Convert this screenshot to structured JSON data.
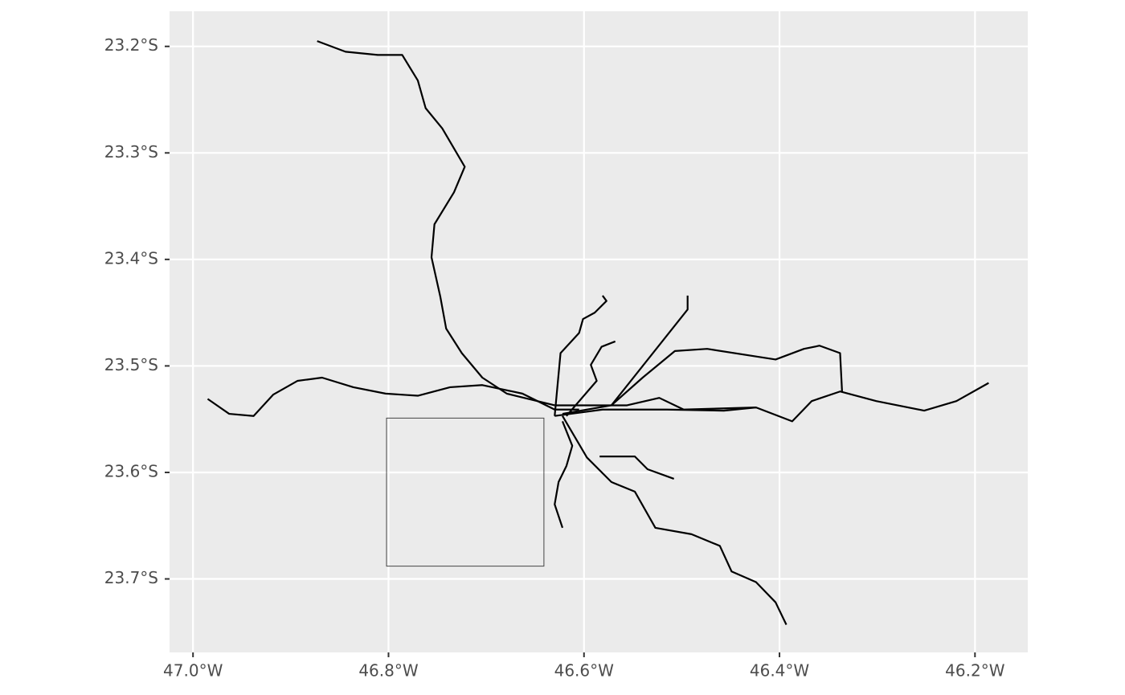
{
  "chart_data": {
    "type": "map",
    "xlim": [
      -47.024,
      -46.146
    ],
    "ylim": [
      -23.769,
      -23.167
    ],
    "xticks": [
      {
        "value": -47.0,
        "label": "47.0°W"
      },
      {
        "value": -46.8,
        "label": "46.8°W"
      },
      {
        "value": -46.6,
        "label": "46.6°W"
      },
      {
        "value": -46.4,
        "label": "46.4°W"
      },
      {
        "value": -46.2,
        "label": "46.2°W"
      }
    ],
    "yticks": [
      {
        "value": -23.2,
        "label": "23.2°S"
      },
      {
        "value": -23.3,
        "label": "23.3°S"
      },
      {
        "value": -23.4,
        "label": "23.4°S"
      },
      {
        "value": -23.5,
        "label": "23.5°S"
      },
      {
        "value": -23.6,
        "label": "23.6°S"
      },
      {
        "value": -23.7,
        "label": "23.7°S"
      }
    ],
    "grid": true,
    "color": "#000000",
    "tracks": [
      {
        "x": [
          -46.873,
          -46.844,
          -46.811,
          -46.786,
          -46.77,
          -46.762,
          -46.745,
          -46.722,
          -46.733,
          -46.753,
          -46.756,
          -46.747,
          -46.741,
          -46.725,
          -46.704,
          -46.679,
          -46.63
        ],
        "y": [
          -23.195,
          -23.205,
          -23.208,
          -23.208,
          -23.232,
          -23.258,
          -23.277,
          -23.313,
          -23.337,
          -23.367,
          -23.398,
          -23.435,
          -23.465,
          -23.488,
          -23.511,
          -23.526,
          -23.537
        ]
      },
      {
        "x": [
          -46.985,
          -46.963,
          -46.938,
          -46.918,
          -46.893,
          -46.868,
          -46.836,
          -46.803,
          -46.77,
          -46.737,
          -46.704,
          -46.663,
          -46.63,
          -46.605
        ],
        "y": [
          -23.531,
          -23.545,
          -23.547,
          -23.527,
          -23.514,
          -23.511,
          -23.52,
          -23.526,
          -23.528,
          -23.52,
          -23.518,
          -23.526,
          -23.541,
          -23.541
        ]
      },
      {
        "x": [
          -46.63,
          -46.581,
          -46.515,
          -46.457,
          -46.424,
          -46.387,
          -46.367,
          -46.338,
          -46.301,
          -46.252,
          -46.219,
          -46.186
        ],
        "y": [
          -23.547,
          -23.541,
          -23.541,
          -23.542,
          -23.539,
          -23.552,
          -23.533,
          -23.524,
          -23.533,
          -23.542,
          -23.533,
          -23.516
        ]
      },
      {
        "x": [
          -46.622,
          -46.572,
          -46.54,
          -46.507,
          -46.474,
          -46.404,
          -46.375,
          -46.359,
          -46.338,
          -46.336
        ],
        "y": [
          -23.545,
          -23.537,
          -23.511,
          -23.486,
          -23.484,
          -23.494,
          -23.484,
          -23.481,
          -23.488,
          -23.524
        ]
      },
      {
        "x": [
          -46.572,
          -46.494,
          -46.494
        ],
        "y": [
          -23.537,
          -23.447,
          -23.434
        ]
      },
      {
        "x": [
          -46.63,
          -46.624,
          -46.605,
          -46.601,
          -46.589,
          -46.577,
          -46.581
        ],
        "y": [
          -23.547,
          -23.488,
          -23.469,
          -23.456,
          -23.45,
          -23.439,
          -23.434
        ]
      },
      {
        "x": [
          -46.618,
          -46.587,
          -46.593,
          -46.582,
          -46.568
        ],
        "y": [
          -23.547,
          -23.514,
          -23.499,
          -23.482,
          -23.477
        ]
      },
      {
        "x": [
          -46.622,
          -46.597,
          -46.572,
          -46.548,
          -46.527,
          -46.49,
          -46.461,
          -46.449,
          -46.424,
          -46.404,
          -46.393
        ],
        "y": [
          -23.547,
          -23.586,
          -23.609,
          -23.618,
          -23.652,
          -23.658,
          -23.669,
          -23.693,
          -23.703,
          -23.722,
          -23.743
        ]
      },
      {
        "x": [
          -46.584,
          -46.548,
          -46.535,
          -46.508
        ],
        "y": [
          -23.585,
          -23.585,
          -23.597,
          -23.606
        ]
      },
      {
        "x": [
          -46.622,
          -46.612,
          -46.618,
          -46.626,
          -46.63,
          -46.622
        ],
        "y": [
          -23.552,
          -23.575,
          -23.594,
          -23.609,
          -23.63,
          -23.652
        ]
      },
      {
        "x": [
          -46.63,
          -46.556,
          -46.523,
          -46.498,
          -46.424
        ],
        "y": [
          -23.537,
          -23.537,
          -23.53,
          -23.541,
          -23.539
        ]
      }
    ],
    "bbox": {
      "xmin": -46.802,
      "xmax": -46.641,
      "ymin": -23.688,
      "ymax": -23.549
    }
  }
}
